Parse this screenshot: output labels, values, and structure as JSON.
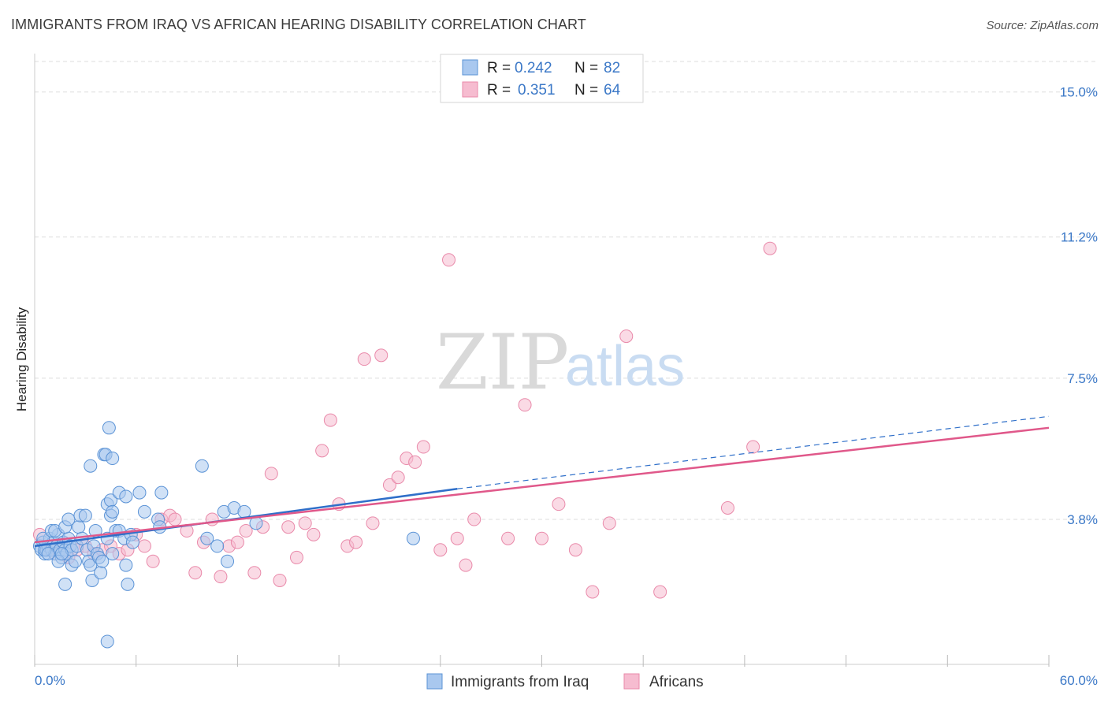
{
  "header": {
    "title": "IMMIGRANTS FROM IRAQ VS AFRICAN HEARING DISABILITY CORRELATION CHART",
    "source": "Source: ZipAtlas.com"
  },
  "watermark": {
    "zip": "ZIP",
    "atlas": "atlas"
  },
  "colors": {
    "blue_fill": "#a9c8ef",
    "blue_stroke": "#5b93d6",
    "blue_line": "#2f6fc9",
    "pink_fill": "#f6bcd0",
    "pink_stroke": "#e98aaa",
    "pink_line": "#e0588a",
    "tick_text": "#3b78c7",
    "grid": "#dddddd"
  },
  "legend": {
    "rows": [
      {
        "r_label": "R = ",
        "r_value": "0.242",
        "n_label": "N = ",
        "n_value": "82",
        "color": "blue"
      },
      {
        "r_label": "R = ",
        "r_value": "0.351",
        "n_label": "N = ",
        "n_value": "64",
        "color": "pink"
      }
    ]
  },
  "chart_data": {
    "type": "scatter",
    "title": "IMMIGRANTS FROM IRAQ VS AFRICAN HEARING DISABILITY CORRELATION CHART",
    "xlabel": "",
    "ylabel": "Hearing Disability",
    "xlim": [
      0,
      60
    ],
    "ylim": [
      0,
      15.8
    ],
    "x_tick_labels": [
      "0.0%",
      "60.0%"
    ],
    "y_ticks": [
      3.8,
      7.5,
      11.2,
      15.0
    ],
    "y_tick_labels": [
      "3.8%",
      "7.5%",
      "11.2%",
      "15.0%"
    ],
    "grid": true,
    "legend_placement": "top-center",
    "series": [
      {
        "name": "Immigrants from Iraq",
        "color": "blue",
        "r": 0.242,
        "n": 82,
        "trend": {
          "x": [
            0,
            25
          ],
          "y": [
            3.1,
            4.6
          ]
        },
        "trend_dashed_extension": {
          "x": [
            25,
            60
          ],
          "y": [
            4.6,
            6.5
          ]
        },
        "points": [
          [
            0.3,
            3.1
          ],
          [
            0.4,
            3.0
          ],
          [
            0.5,
            3.2
          ],
          [
            0.6,
            2.9
          ],
          [
            0.7,
            3.0
          ],
          [
            0.8,
            3.1
          ],
          [
            0.9,
            3.3
          ],
          [
            1.0,
            3.0
          ],
          [
            1.1,
            3.2
          ],
          [
            1.2,
            2.9
          ],
          [
            1.3,
            3.1
          ],
          [
            1.4,
            3.4
          ],
          [
            1.5,
            3.0
          ],
          [
            1.6,
            2.8
          ],
          [
            1.7,
            3.2
          ],
          [
            1.8,
            3.0
          ],
          [
            1.9,
            2.9
          ],
          [
            2.0,
            3.3
          ],
          [
            2.1,
            3.1
          ],
          [
            2.2,
            3.0
          ],
          [
            0.5,
            3.3
          ],
          [
            0.6,
            3.0
          ],
          [
            0.8,
            2.9
          ],
          [
            1.0,
            3.5
          ],
          [
            1.2,
            3.5
          ],
          [
            1.4,
            2.7
          ],
          [
            1.6,
            2.9
          ],
          [
            1.8,
            3.6
          ],
          [
            2.0,
            3.8
          ],
          [
            2.2,
            2.6
          ],
          [
            1.8,
            2.1
          ],
          [
            2.4,
            2.7
          ],
          [
            2.5,
            3.1
          ],
          [
            2.6,
            3.6
          ],
          [
            2.7,
            3.9
          ],
          [
            2.8,
            3.3
          ],
          [
            3.0,
            3.9
          ],
          [
            3.1,
            3.0
          ],
          [
            3.2,
            2.7
          ],
          [
            3.3,
            2.6
          ],
          [
            3.4,
            2.2
          ],
          [
            3.5,
            3.1
          ],
          [
            3.6,
            3.5
          ],
          [
            3.7,
            2.9
          ],
          [
            3.8,
            2.8
          ],
          [
            3.9,
            2.4
          ],
          [
            4.0,
            2.7
          ],
          [
            4.1,
            5.5
          ],
          [
            4.3,
            4.2
          ],
          [
            4.5,
            3.9
          ],
          [
            3.3,
            5.2
          ],
          [
            4.2,
            5.5
          ],
          [
            4.5,
            4.3
          ],
          [
            4.6,
            2.9
          ],
          [
            4.8,
            3.5
          ],
          [
            5.0,
            3.5
          ],
          [
            5.3,
            3.3
          ],
          [
            5.4,
            2.6
          ],
          [
            5.5,
            2.1
          ],
          [
            5.7,
            3.4
          ],
          [
            4.3,
            0.6
          ],
          [
            4.6,
            5.4
          ],
          [
            4.3,
            3.3
          ],
          [
            5.0,
            4.5
          ],
          [
            5.4,
            4.4
          ],
          [
            6.2,
            4.5
          ],
          [
            6.5,
            4.0
          ],
          [
            7.3,
            3.8
          ],
          [
            7.4,
            3.6
          ],
          [
            7.5,
            4.5
          ],
          [
            4.6,
            4.0
          ],
          [
            5.8,
            3.2
          ],
          [
            9.9,
            5.2
          ],
          [
            10.2,
            3.3
          ],
          [
            10.8,
            3.1
          ],
          [
            11.2,
            4.0
          ],
          [
            11.4,
            2.7
          ],
          [
            11.8,
            4.1
          ],
          [
            12.4,
            4.0
          ],
          [
            13.1,
            3.7
          ],
          [
            22.4,
            3.3
          ],
          [
            4.4,
            6.2
          ]
        ]
      },
      {
        "name": "Africans",
        "color": "pink",
        "r": 0.351,
        "n": 64,
        "trend": {
          "x": [
            0,
            60
          ],
          "y": [
            3.2,
            6.2
          ]
        },
        "points": [
          [
            0.3,
            3.4
          ],
          [
            0.8,
            3.0
          ],
          [
            1.2,
            2.9
          ],
          [
            1.6,
            3.1
          ],
          [
            2.0,
            2.8
          ],
          [
            2.5,
            3.0
          ],
          [
            3.0,
            3.1
          ],
          [
            3.5,
            2.9
          ],
          [
            4.0,
            3.0
          ],
          [
            4.5,
            3.1
          ],
          [
            5.0,
            2.9
          ],
          [
            5.5,
            3.0
          ],
          [
            6.0,
            3.4
          ],
          [
            6.5,
            3.1
          ],
          [
            7.0,
            2.7
          ],
          [
            7.5,
            3.8
          ],
          [
            8.0,
            3.9
          ],
          [
            8.3,
            3.8
          ],
          [
            9.0,
            3.5
          ],
          [
            9.5,
            2.4
          ],
          [
            10.0,
            3.2
          ],
          [
            10.5,
            3.8
          ],
          [
            11.0,
            2.3
          ],
          [
            11.5,
            3.1
          ],
          [
            12.0,
            3.2
          ],
          [
            12.5,
            3.5
          ],
          [
            13.0,
            2.4
          ],
          [
            13.5,
            3.6
          ],
          [
            14.0,
            5.0
          ],
          [
            14.5,
            2.2
          ],
          [
            15.0,
            3.6
          ],
          [
            15.5,
            2.8
          ],
          [
            16.0,
            3.7
          ],
          [
            16.5,
            3.4
          ],
          [
            17.0,
            5.6
          ],
          [
            17.5,
            6.4
          ],
          [
            18.0,
            4.2
          ],
          [
            18.5,
            3.1
          ],
          [
            19.0,
            3.2
          ],
          [
            19.5,
            8.0
          ],
          [
            20.0,
            3.7
          ],
          [
            20.5,
            8.1
          ],
          [
            21.0,
            4.7
          ],
          [
            21.5,
            4.9
          ],
          [
            22.0,
            5.4
          ],
          [
            22.5,
            5.3
          ],
          [
            23.0,
            5.7
          ],
          [
            24.0,
            3.0
          ],
          [
            24.5,
            10.6
          ],
          [
            25.0,
            3.3
          ],
          [
            25.5,
            2.6
          ],
          [
            26.0,
            3.8
          ],
          [
            28.0,
            3.3
          ],
          [
            29.0,
            6.8
          ],
          [
            30.0,
            3.3
          ],
          [
            31.0,
            4.2
          ],
          [
            32.0,
            3.0
          ],
          [
            33.0,
            1.9
          ],
          [
            34.0,
            3.7
          ],
          [
            35.0,
            8.6
          ],
          [
            37.0,
            1.9
          ],
          [
            41.0,
            4.1
          ],
          [
            42.5,
            5.7
          ],
          [
            43.5,
            10.9
          ]
        ]
      }
    ]
  },
  "bottom_legend": {
    "items": [
      {
        "label": "Immigrants from Iraq",
        "color": "blue"
      },
      {
        "label": "Africans",
        "color": "pink"
      }
    ]
  }
}
